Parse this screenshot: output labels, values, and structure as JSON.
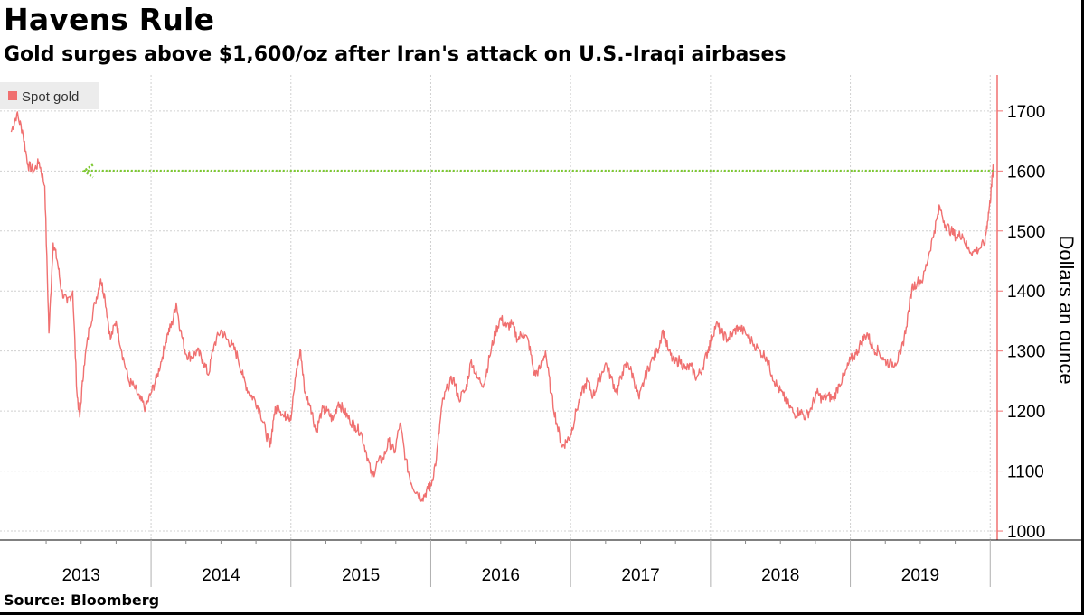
{
  "header": {
    "title": "Havens Rule",
    "subtitle": "Gold surges above $1,600/oz after Iran's attack on U.S.-Iraqi airbases"
  },
  "footer": {
    "source": "Source: Bloomberg"
  },
  "colors": {
    "series": "#f07070",
    "reference": "#7dc832",
    "grid": "#d0d0d0",
    "axis": "#f07070"
  },
  "chart_data": {
    "type": "line",
    "title": "Havens Rule",
    "subtitle": "Gold surges above $1,600/oz after Iran's attack on U.S.-Iraqi airbases",
    "ylabel": "Dollars an ounce",
    "ylim": [
      985,
      1760
    ],
    "yticks": [
      1000,
      1100,
      1200,
      1300,
      1400,
      1500,
      1600,
      1700
    ],
    "xlim": [
      2012.92,
      2020.05
    ],
    "xticks": [
      "2013",
      "2014",
      "2015",
      "2016",
      "2017",
      "2018",
      "2019"
    ],
    "grid": true,
    "legend": {
      "position": "top-left",
      "entries": [
        "Spot gold"
      ]
    },
    "reference_line": {
      "y": 1600,
      "x_start": 2013.52,
      "x_end": 2020.02,
      "style": "dotted",
      "arrow": "left"
    },
    "series": [
      {
        "name": "Spot gold",
        "points": [
          [
            2013.0,
            1665
          ],
          [
            2013.04,
            1695
          ],
          [
            2013.08,
            1668
          ],
          [
            2013.12,
            1610
          ],
          [
            2013.16,
            1600
          ],
          [
            2013.2,
            1615
          ],
          [
            2013.24,
            1575
          ],
          [
            2013.27,
            1330
          ],
          [
            2013.3,
            1480
          ],
          [
            2013.33,
            1450
          ],
          [
            2013.36,
            1400
          ],
          [
            2013.4,
            1380
          ],
          [
            2013.44,
            1400
          ],
          [
            2013.47,
            1230
          ],
          [
            2013.49,
            1190
          ],
          [
            2013.52,
            1275
          ],
          [
            2013.56,
            1340
          ],
          [
            2013.6,
            1380
          ],
          [
            2013.64,
            1420
          ],
          [
            2013.67,
            1390
          ],
          [
            2013.71,
            1320
          ],
          [
            2013.75,
            1350
          ],
          [
            2013.79,
            1300
          ],
          [
            2013.84,
            1250
          ],
          [
            2013.88,
            1240
          ],
          [
            2013.92,
            1220
          ],
          [
            2013.96,
            1205
          ],
          [
            2014.0,
            1230
          ],
          [
            2014.04,
            1255
          ],
          [
            2014.08,
            1290
          ],
          [
            2014.12,
            1330
          ],
          [
            2014.15,
            1345
          ],
          [
            2014.18,
            1380
          ],
          [
            2014.21,
            1335
          ],
          [
            2014.25,
            1295
          ],
          [
            2014.29,
            1290
          ],
          [
            2014.33,
            1300
          ],
          [
            2014.37,
            1285
          ],
          [
            2014.41,
            1260
          ],
          [
            2014.45,
            1310
          ],
          [
            2014.5,
            1335
          ],
          [
            2014.54,
            1320
          ],
          [
            2014.58,
            1310
          ],
          [
            2014.62,
            1290
          ],
          [
            2014.66,
            1255
          ],
          [
            2014.7,
            1230
          ],
          [
            2014.74,
            1220
          ],
          [
            2014.78,
            1200
          ],
          [
            2014.82,
            1165
          ],
          [
            2014.85,
            1140
          ],
          [
            2014.88,
            1195
          ],
          [
            2014.91,
            1210
          ],
          [
            2014.95,
            1190
          ],
          [
            2014.98,
            1195
          ],
          [
            2015.0,
            1185
          ],
          [
            2015.04,
            1270
          ],
          [
            2015.07,
            1300
          ],
          [
            2015.1,
            1230
          ],
          [
            2015.14,
            1210
          ],
          [
            2015.18,
            1165
          ],
          [
            2015.22,
            1200
          ],
          [
            2015.26,
            1200
          ],
          [
            2015.3,
            1185
          ],
          [
            2015.34,
            1215
          ],
          [
            2015.38,
            1200
          ],
          [
            2015.42,
            1185
          ],
          [
            2015.46,
            1175
          ],
          [
            2015.5,
            1165
          ],
          [
            2015.54,
            1130
          ],
          [
            2015.58,
            1090
          ],
          [
            2015.62,
            1115
          ],
          [
            2015.66,
            1120
          ],
          [
            2015.7,
            1150
          ],
          [
            2015.74,
            1130
          ],
          [
            2015.78,
            1180
          ],
          [
            2015.82,
            1120
          ],
          [
            2015.86,
            1080
          ],
          [
            2015.9,
            1065
          ],
          [
            2015.94,
            1055
          ],
          [
            2015.98,
            1070
          ],
          [
            2016.0,
            1075
          ],
          [
            2016.04,
            1120
          ],
          [
            2016.08,
            1210
          ],
          [
            2016.12,
            1240
          ],
          [
            2016.16,
            1255
          ],
          [
            2016.2,
            1220
          ],
          [
            2016.25,
            1235
          ],
          [
            2016.29,
            1285
          ],
          [
            2016.33,
            1255
          ],
          [
            2016.38,
            1245
          ],
          [
            2016.42,
            1290
          ],
          [
            2016.46,
            1330
          ],
          [
            2016.5,
            1355
          ],
          [
            2016.54,
            1340
          ],
          [
            2016.58,
            1345
          ],
          [
            2016.62,
            1320
          ],
          [
            2016.66,
            1330
          ],
          [
            2016.7,
            1315
          ],
          [
            2016.74,
            1260
          ],
          [
            2016.78,
            1270
          ],
          [
            2016.82,
            1300
          ],
          [
            2016.86,
            1230
          ],
          [
            2016.9,
            1180
          ],
          [
            2016.94,
            1140
          ],
          [
            2016.97,
            1150
          ],
          [
            2017.0,
            1160
          ],
          [
            2017.04,
            1200
          ],
          [
            2017.08,
            1230
          ],
          [
            2017.12,
            1250
          ],
          [
            2017.16,
            1225
          ],
          [
            2017.2,
            1250
          ],
          [
            2017.25,
            1280
          ],
          [
            2017.29,
            1255
          ],
          [
            2017.33,
            1230
          ],
          [
            2017.37,
            1265
          ],
          [
            2017.41,
            1280
          ],
          [
            2017.45,
            1255
          ],
          [
            2017.49,
            1220
          ],
          [
            2017.53,
            1255
          ],
          [
            2017.57,
            1280
          ],
          [
            2017.62,
            1300
          ],
          [
            2017.66,
            1335
          ],
          [
            2017.7,
            1300
          ],
          [
            2017.74,
            1280
          ],
          [
            2017.78,
            1285
          ],
          [
            2017.82,
            1270
          ],
          [
            2017.86,
            1275
          ],
          [
            2017.9,
            1255
          ],
          [
            2017.94,
            1270
          ],
          [
            2017.98,
            1300
          ],
          [
            2018.0,
            1315
          ],
          [
            2018.04,
            1345
          ],
          [
            2018.08,
            1330
          ],
          [
            2018.12,
            1320
          ],
          [
            2018.16,
            1330
          ],
          [
            2018.2,
            1340
          ],
          [
            2018.25,
            1330
          ],
          [
            2018.3,
            1315
          ],
          [
            2018.35,
            1300
          ],
          [
            2018.4,
            1290
          ],
          [
            2018.44,
            1260
          ],
          [
            2018.48,
            1240
          ],
          [
            2018.52,
            1225
          ],
          [
            2018.56,
            1210
          ],
          [
            2018.6,
            1195
          ],
          [
            2018.64,
            1200
          ],
          [
            2018.68,
            1190
          ],
          [
            2018.72,
            1205
          ],
          [
            2018.76,
            1230
          ],
          [
            2018.8,
            1220
          ],
          [
            2018.84,
            1225
          ],
          [
            2018.88,
            1220
          ],
          [
            2018.92,
            1245
          ],
          [
            2018.96,
            1260
          ],
          [
            2019.0,
            1285
          ],
          [
            2019.04,
            1295
          ],
          [
            2019.08,
            1315
          ],
          [
            2019.12,
            1330
          ],
          [
            2019.16,
            1305
          ],
          [
            2019.2,
            1300
          ],
          [
            2019.24,
            1285
          ],
          [
            2019.28,
            1280
          ],
          [
            2019.32,
            1280
          ],
          [
            2019.36,
            1295
          ],
          [
            2019.4,
            1340
          ],
          [
            2019.44,
            1405
          ],
          [
            2019.48,
            1415
          ],
          [
            2019.52,
            1420
          ],
          [
            2019.56,
            1460
          ],
          [
            2019.6,
            1500
          ],
          [
            2019.64,
            1540
          ],
          [
            2019.68,
            1510
          ],
          [
            2019.72,
            1500
          ],
          [
            2019.76,
            1490
          ],
          [
            2019.8,
            1495
          ],
          [
            2019.84,
            1470
          ],
          [
            2019.88,
            1465
          ],
          [
            2019.92,
            1470
          ],
          [
            2019.96,
            1480
          ],
          [
            2019.98,
            1515
          ],
          [
            2020.0,
            1550
          ],
          [
            2020.01,
            1575
          ],
          [
            2020.02,
            1610
          ],
          [
            2020.025,
            1590
          ]
        ]
      }
    ]
  }
}
